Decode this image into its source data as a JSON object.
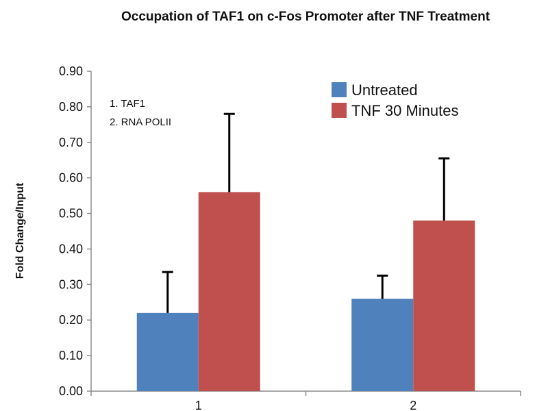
{
  "chart_data": {
    "type": "bar",
    "title": "Occupation of TAF1 on c-Fos Promoter after TNF Treatment",
    "xlabel": "",
    "ylabel": "Fold Change/Input",
    "categories": [
      "1",
      "2"
    ],
    "ylim": [
      0,
      0.9
    ],
    "yticks": [
      "0.00",
      "0.10",
      "0.20",
      "0.30",
      "0.40",
      "0.50",
      "0.60",
      "0.70",
      "0.80",
      "0.90"
    ],
    "series": [
      {
        "name": "Untreated",
        "color": "#4f81bd",
        "values": [
          0.22,
          0.26
        ],
        "error_plus": [
          0.115,
          0.065
        ]
      },
      {
        "name": "TNF 30 Minutes",
        "color": "#c0504d",
        "values": [
          0.56,
          0.48
        ],
        "error_plus": [
          0.22,
          0.175
        ]
      }
    ],
    "annotations": [
      "1. TAF1",
      "2. RNA POLII"
    ],
    "legend_position": "top-right",
    "grid": false
  }
}
